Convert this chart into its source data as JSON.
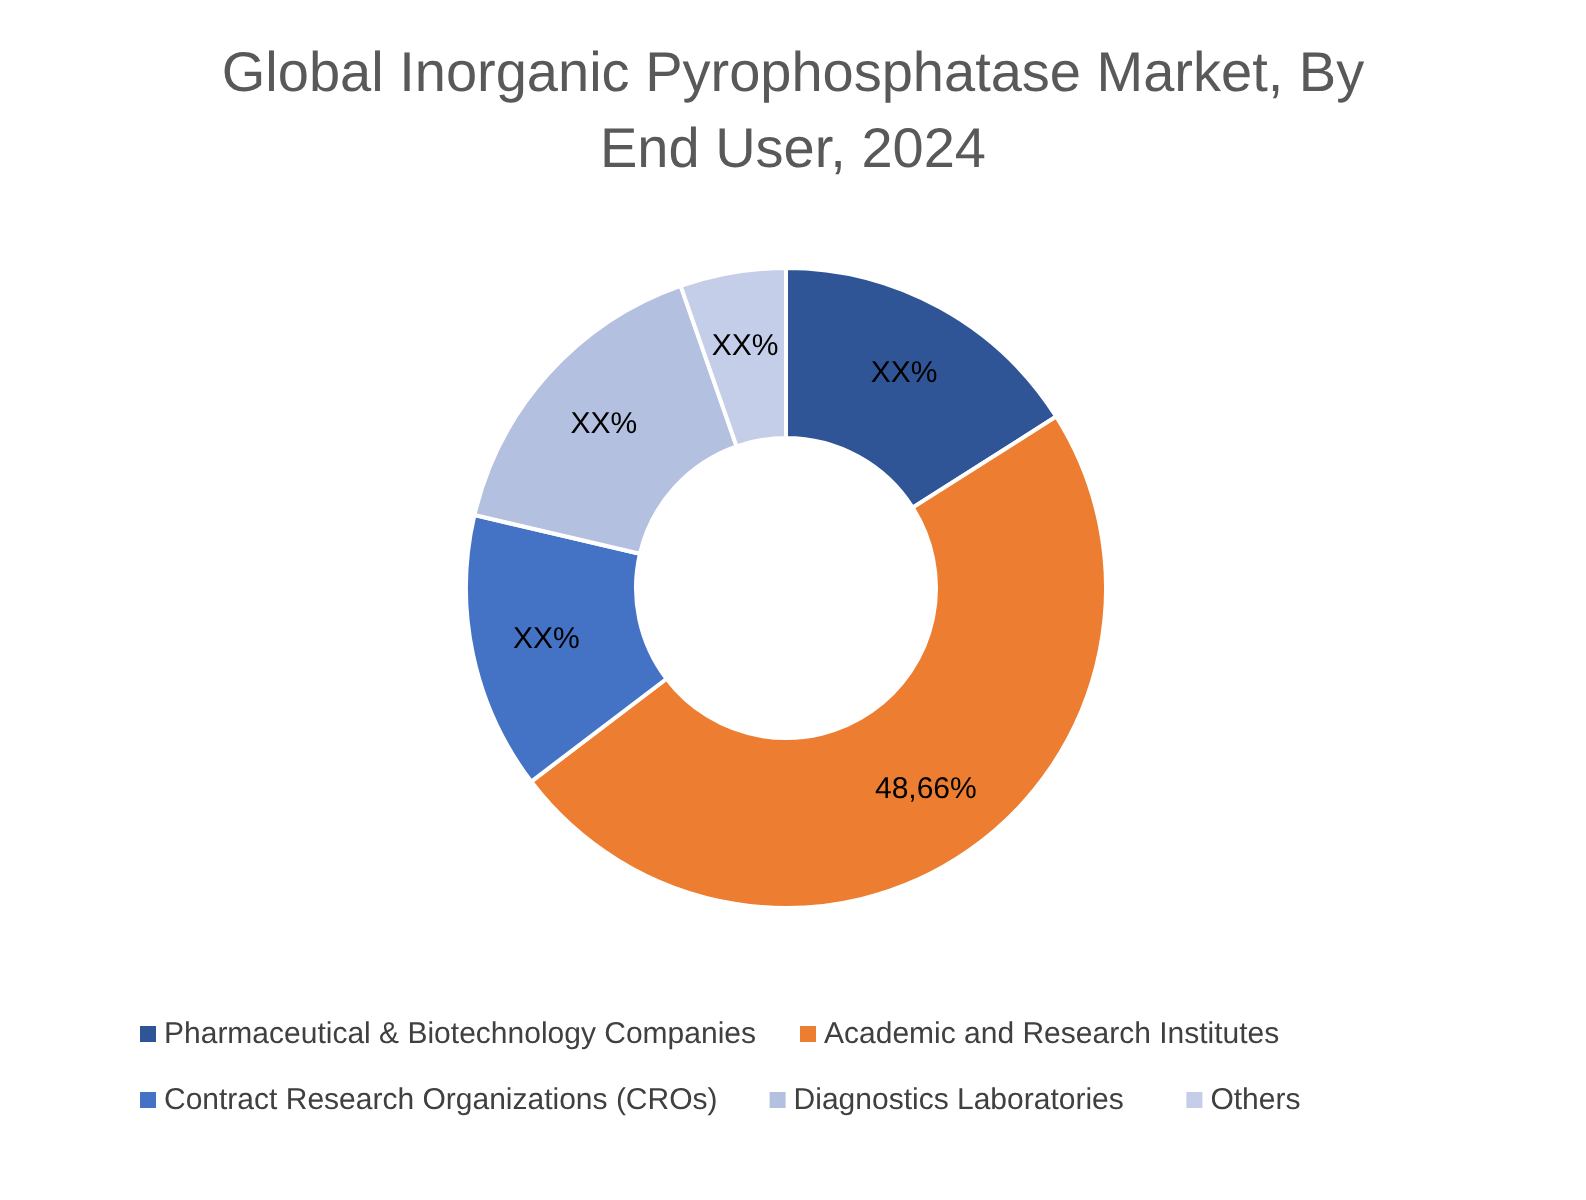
{
  "chart_data": {
    "type": "donut",
    "title": "Global Inorganic Pyrophosphatase Market, By End User, 2024",
    "categories": [
      "Pharmaceutical & Biotechnology Companies",
      "Academic and Research Institutes",
      "Contract Research Organizations (CROs)",
      "Diagnostics Laboratories",
      "Others"
    ],
    "values": [
      16,
      48.66,
      14,
      16,
      5.34
    ],
    "colors": [
      "#2f5597",
      "#ed7d31",
      "#4472c4",
      "#b4c0e0",
      "#c5cee8"
    ],
    "value_labels": [
      "XX%",
      "48,66%",
      "XX%",
      "XX%",
      "XX%"
    ],
    "legend": "bottom"
  }
}
